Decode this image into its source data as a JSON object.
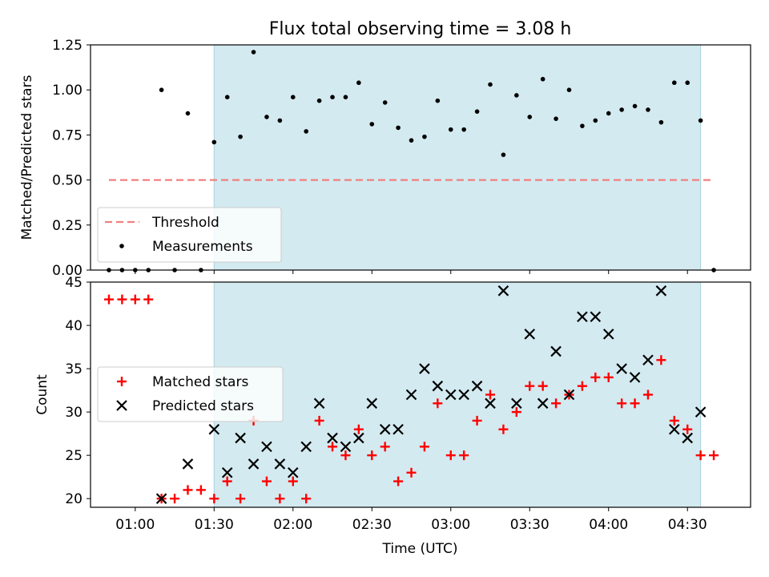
{
  "chart_data": [
    {
      "type": "scatter",
      "title": "Flux total observing time = 3.08 h",
      "xlabel": "",
      "ylabel": "Matched/Predicted stars",
      "ylim": [
        0,
        1.25
      ],
      "y_ticks": [
        "0.00",
        "0.25",
        "0.50",
        "0.75",
        "1.00",
        "1.25"
      ],
      "y_tick_values": [
        0,
        0.25,
        0.5,
        0.75,
        1.0,
        1.25
      ],
      "x_range": [
        "00:43",
        "04:54"
      ],
      "shaded_region": [
        "01:30",
        "04:35"
      ],
      "shade_color": "#d3eaf0",
      "threshold": {
        "name": "Threshold",
        "value": 0.5,
        "x": [
          "00:50",
          "04:40"
        ],
        "color": "#f08080"
      },
      "legend": {
        "placement": "lower-left",
        "entries": [
          "Threshold",
          "Measurements"
        ]
      },
      "series": [
        {
          "name": "Measurements",
          "color": "#000000",
          "x": [
            "00:50",
            "00:55",
            "01:00",
            "01:05",
            "01:10",
            "01:15",
            "01:20",
            "01:25",
            "01:30",
            "01:35",
            "01:40",
            "01:45",
            "01:50",
            "01:55",
            "02:00",
            "02:05",
            "02:10",
            "02:15",
            "02:20",
            "02:25",
            "02:30",
            "02:35",
            "02:40",
            "02:45",
            "02:50",
            "02:55",
            "03:00",
            "03:05",
            "03:10",
            "03:15",
            "03:20",
            "03:25",
            "03:30",
            "03:35",
            "03:40",
            "03:45",
            "03:50",
            "03:55",
            "04:00",
            "04:05",
            "04:10",
            "04:15",
            "04:20",
            "04:25",
            "04:30",
            "04:35",
            "04:40"
          ],
          "y": [
            0,
            0,
            0,
            0,
            1.0,
            0,
            0.87,
            0,
            0.71,
            0.96,
            0.74,
            1.21,
            0.85,
            0.83,
            0.96,
            0.77,
            0.94,
            0.96,
            0.96,
            1.04,
            0.81,
            0.93,
            0.79,
            0.72,
            0.74,
            0.94,
            0.78,
            0.78,
            0.88,
            1.03,
            0.64,
            0.97,
            0.85,
            1.06,
            0.84,
            1.0,
            0.8,
            0.83,
            0.87,
            0.89,
            0.91,
            0.89,
            0.82,
            1.04,
            1.04,
            0.83,
            0
          ]
        }
      ]
    },
    {
      "type": "scatter",
      "title": "",
      "xlabel": "Time (UTC)",
      "ylabel": "Count",
      "ylim": [
        19,
        45
      ],
      "y_ticks": [
        "20",
        "25",
        "30",
        "35",
        "40",
        "45"
      ],
      "y_tick_values": [
        20,
        25,
        30,
        35,
        40,
        45
      ],
      "x_ticks": [
        "01:00",
        "01:30",
        "02:00",
        "02:30",
        "03:00",
        "03:30",
        "04:00",
        "04:30"
      ],
      "x_range": [
        "00:43",
        "04:54"
      ],
      "shaded_region": [
        "01:30",
        "04:35"
      ],
      "shade_color": "#d3eaf0",
      "legend": {
        "placement": "center-left",
        "entries": [
          "Matched stars",
          "Predicted stars"
        ]
      },
      "series": [
        {
          "name": "Matched stars",
          "marker": "plus",
          "color": "#ff0000",
          "x": [
            "00:50",
            "00:55",
            "01:00",
            "01:05",
            "01:10",
            "01:15",
            "01:20",
            "01:25",
            "01:30",
            "01:35",
            "01:40",
            "01:45",
            "01:50",
            "01:55",
            "02:00",
            "02:05",
            "02:10",
            "02:15",
            "02:20",
            "02:25",
            "02:30",
            "02:35",
            "02:40",
            "02:45",
            "02:50",
            "02:55",
            "03:00",
            "03:05",
            "03:10",
            "03:15",
            "03:20",
            "03:25",
            "03:30",
            "03:35",
            "03:40",
            "03:45",
            "03:50",
            "03:55",
            "04:00",
            "04:05",
            "04:10",
            "04:15",
            "04:20",
            "04:25",
            "04:30",
            "04:35",
            "04:40"
          ],
          "y": [
            43,
            43,
            43,
            43,
            20,
            20,
            21,
            21,
            20,
            22,
            20,
            29,
            22,
            20,
            22,
            20,
            29,
            26,
            25,
            28,
            25,
            26,
            22,
            23,
            26,
            31,
            25,
            25,
            29,
            32,
            28,
            30,
            33,
            33,
            31,
            32,
            33,
            34,
            34,
            31,
            31,
            32,
            36,
            29,
            28,
            25,
            25
          ]
        },
        {
          "name": "Predicted stars",
          "marker": "x",
          "color": "#000000",
          "x": [
            "01:10",
            "01:20",
            "01:30",
            "01:35",
            "01:40",
            "01:45",
            "01:50",
            "01:55",
            "02:00",
            "02:05",
            "02:10",
            "02:15",
            "02:20",
            "02:25",
            "02:30",
            "02:35",
            "02:40",
            "02:45",
            "02:50",
            "02:55",
            "03:00",
            "03:05",
            "03:10",
            "03:15",
            "03:20",
            "03:25",
            "03:30",
            "03:35",
            "03:40",
            "03:45",
            "03:50",
            "03:55",
            "04:00",
            "04:05",
            "04:10",
            "04:15",
            "04:20",
            "04:25",
            "04:30",
            "04:35"
          ],
          "y": [
            20,
            24,
            28,
            23,
            27,
            24,
            26,
            24,
            23,
            26,
            31,
            27,
            26,
            27,
            31,
            28,
            28,
            32,
            35,
            33,
            32,
            32,
            33,
            31,
            44,
            31,
            39,
            31,
            37,
            32,
            41,
            41,
            39,
            35,
            34,
            36,
            44,
            28,
            27,
            30
          ]
        }
      ]
    }
  ]
}
